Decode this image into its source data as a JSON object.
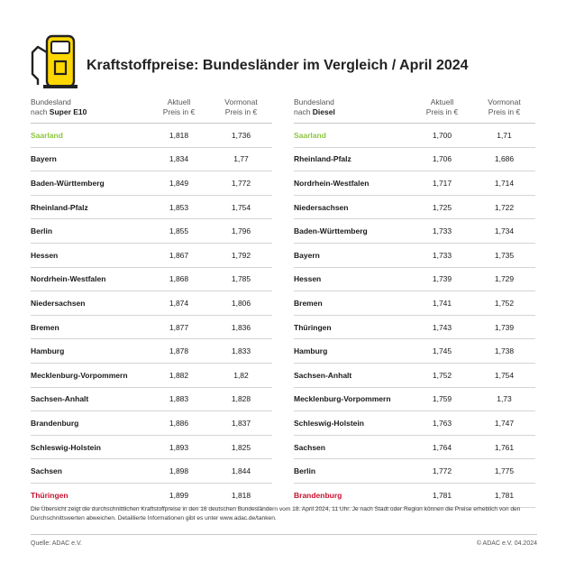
{
  "title": "Kraftstoffpreise: Bundesländer im Vergleich / April 2024",
  "icon": "fuel-pump-icon",
  "colors": {
    "accent": "#ffd700",
    "best": "#8dc63f",
    "worst": "#c8102e"
  },
  "left_table": {
    "header": {
      "col1_line1": "Bundesland",
      "col1_prefix": "nach ",
      "col1_fuel": "Super E10",
      "col2_line1": "Aktuell",
      "col2_line2": "Preis in €",
      "col3_line1": "Vormonat",
      "col3_line2": "Preis in €"
    },
    "rows": [
      {
        "state": "Saarland",
        "current": "1,818",
        "previous": "1,736"
      },
      {
        "state": "Bayern",
        "current": "1,834",
        "previous": "1,77"
      },
      {
        "state": "Baden-Württemberg",
        "current": "1,849",
        "previous": "1,772"
      },
      {
        "state": "Rheinland-Pfalz",
        "current": "1,853",
        "previous": "1,754"
      },
      {
        "state": "Berlin",
        "current": "1,855",
        "previous": "1,796"
      },
      {
        "state": "Hessen",
        "current": "1,867",
        "previous": "1,792"
      },
      {
        "state": "Nordrhein-Westfalen",
        "current": "1,868",
        "previous": "1,785"
      },
      {
        "state": "Niedersachsen",
        "current": "1,874",
        "previous": "1,806"
      },
      {
        "state": "Bremen",
        "current": "1,877",
        "previous": "1,836"
      },
      {
        "state": "Hamburg",
        "current": "1,878",
        "previous": "1,833"
      },
      {
        "state": "Mecklenburg-Vorpommern",
        "current": "1,882",
        "previous": "1,82"
      },
      {
        "state": "Sachsen-Anhalt",
        "current": "1,883",
        "previous": "1,828"
      },
      {
        "state": "Brandenburg",
        "current": "1,886",
        "previous": "1,837"
      },
      {
        "state": "Schleswig-Holstein",
        "current": "1,893",
        "previous": "1,825"
      },
      {
        "state": "Sachsen",
        "current": "1,898",
        "previous": "1,844"
      },
      {
        "state": "Thüringen",
        "current": "1,899",
        "previous": "1,818"
      }
    ]
  },
  "right_table": {
    "header": {
      "col1_line1": "Bundesland",
      "col1_prefix": "nach ",
      "col1_fuel": "Diesel",
      "col2_line1": "Aktuell",
      "col2_line2": "Preis in €",
      "col3_line1": "Vormonat",
      "col3_line2": "Preis in €"
    },
    "rows": [
      {
        "state": "Saarland",
        "current": "1,700",
        "previous": "1,71"
      },
      {
        "state": "Rheinland-Pfalz",
        "current": "1,706",
        "previous": "1,686"
      },
      {
        "state": "Nordrhein-Westfalen",
        "current": "1,717",
        "previous": "1,714"
      },
      {
        "state": "Niedersachsen",
        "current": "1,725",
        "previous": "1,722"
      },
      {
        "state": "Baden-Württemberg",
        "current": "1,733",
        "previous": "1,734"
      },
      {
        "state": "Bayern",
        "current": "1,733",
        "previous": "1,735"
      },
      {
        "state": "Hessen",
        "current": "1,739",
        "previous": "1,729"
      },
      {
        "state": "Bremen",
        "current": "1,741",
        "previous": "1,752"
      },
      {
        "state": "Thüringen",
        "current": "1,743",
        "previous": "1,739"
      },
      {
        "state": "Hamburg",
        "current": "1,745",
        "previous": "1,738"
      },
      {
        "state": "Sachsen-Anhalt",
        "current": "1,752",
        "previous": "1,754"
      },
      {
        "state": "Mecklenburg-Vorpommern",
        "current": "1,759",
        "previous": "1,73"
      },
      {
        "state": "Schleswig-Holstein",
        "current": "1,763",
        "previous": "1,747"
      },
      {
        "state": "Sachsen",
        "current": "1,764",
        "previous": "1,761"
      },
      {
        "state": "Berlin",
        "current": "1,772",
        "previous": "1,775"
      },
      {
        "state": "Brandenburg",
        "current": "1,781",
        "previous": "1,781"
      }
    ]
  },
  "note": "Die Übersicht zeigt die durchschnittlichen Kraftstoffpreise in den 16 deutschen Bundesländern vom 18. April 2024, 11 Uhr. Je nach Stadt oder Region können die Preise erheblich von den Durchschnittswerten abweichen. Detaillierte Informationen gibt es unter www.adac.de/tanken.",
  "source": "Quelle: ADAC e.V.",
  "copyright": "© ADAC e.V. 04.2024"
}
